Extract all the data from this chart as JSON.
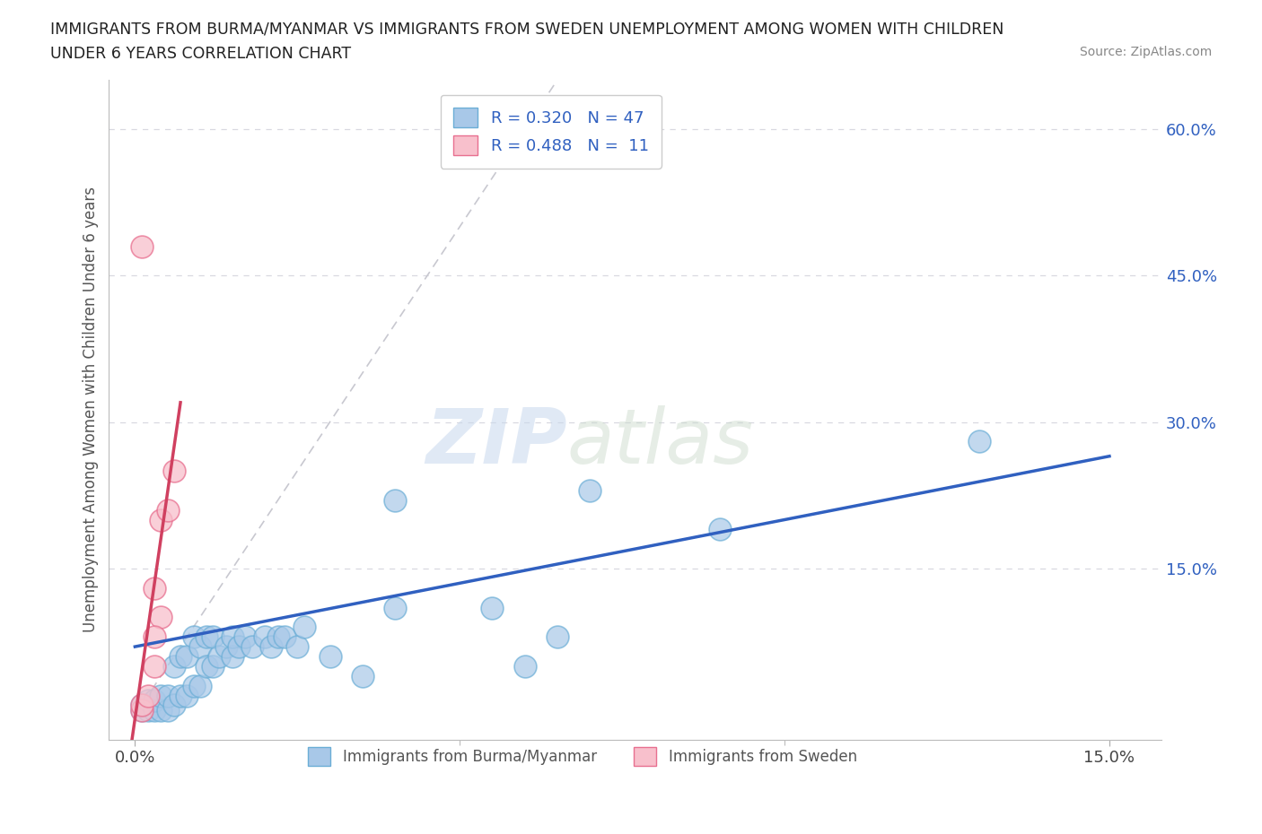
{
  "title_line1": "IMMIGRANTS FROM BURMA/MYANMAR VS IMMIGRANTS FROM SWEDEN UNEMPLOYMENT AMONG WOMEN WITH CHILDREN",
  "title_line2": "UNDER 6 YEARS CORRELATION CHART",
  "source": "Source: ZipAtlas.com",
  "ylabel": "Unemployment Among Women with Children Under 6 years",
  "legend_label1": "Immigrants from Burma/Myanmar",
  "legend_label2": "Immigrants from Sweden",
  "color_blue": "#a8c8e8",
  "color_blue_edge": "#6baed6",
  "color_pink": "#f8c0cc",
  "color_pink_edge": "#e87090",
  "color_trendline_blue": "#3060c0",
  "color_trendline_pink": "#d04060",
  "color_diagonal": "#c8c8d0",
  "watermark_zip": "ZIP",
  "watermark_atlas": "atlas",
  "background_color": "#ffffff",
  "gridline_color": "#d8d8e0",
  "xlim": [
    -0.004,
    0.158
  ],
  "ylim": [
    -0.025,
    0.65
  ],
  "xticks": [
    0.0,
    0.15
  ],
  "yticks": [
    0.15,
    0.3,
    0.45,
    0.6
  ],
  "blue_scatter": [
    [
      0.001,
      0.005
    ],
    [
      0.001,
      0.01
    ],
    [
      0.002,
      0.005
    ],
    [
      0.002,
      0.015
    ],
    [
      0.003,
      0.005
    ],
    [
      0.003,
      0.015
    ],
    [
      0.004,
      0.005
    ],
    [
      0.004,
      0.02
    ],
    [
      0.005,
      0.005
    ],
    [
      0.005,
      0.02
    ],
    [
      0.006,
      0.01
    ],
    [
      0.006,
      0.05
    ],
    [
      0.007,
      0.02
    ],
    [
      0.007,
      0.06
    ],
    [
      0.008,
      0.02
    ],
    [
      0.008,
      0.06
    ],
    [
      0.009,
      0.03
    ],
    [
      0.009,
      0.08
    ],
    [
      0.01,
      0.03
    ],
    [
      0.01,
      0.07
    ],
    [
      0.011,
      0.05
    ],
    [
      0.011,
      0.08
    ],
    [
      0.012,
      0.05
    ],
    [
      0.012,
      0.08
    ],
    [
      0.013,
      0.06
    ],
    [
      0.014,
      0.07
    ],
    [
      0.015,
      0.06
    ],
    [
      0.015,
      0.08
    ],
    [
      0.016,
      0.07
    ],
    [
      0.017,
      0.08
    ],
    [
      0.018,
      0.07
    ],
    [
      0.02,
      0.08
    ],
    [
      0.021,
      0.07
    ],
    [
      0.022,
      0.08
    ],
    [
      0.023,
      0.08
    ],
    [
      0.025,
      0.07
    ],
    [
      0.026,
      0.09
    ],
    [
      0.03,
      0.06
    ],
    [
      0.035,
      0.04
    ],
    [
      0.04,
      0.11
    ],
    [
      0.04,
      0.22
    ],
    [
      0.055,
      0.11
    ],
    [
      0.06,
      0.05
    ],
    [
      0.065,
      0.08
    ],
    [
      0.07,
      0.23
    ],
    [
      0.09,
      0.19
    ],
    [
      0.13,
      0.28
    ]
  ],
  "pink_scatter": [
    [
      0.001,
      0.005
    ],
    [
      0.001,
      0.01
    ],
    [
      0.002,
      0.02
    ],
    [
      0.003,
      0.05
    ],
    [
      0.003,
      0.13
    ],
    [
      0.004,
      0.1
    ],
    [
      0.004,
      0.2
    ],
    [
      0.005,
      0.21
    ],
    [
      0.006,
      0.25
    ],
    [
      0.001,
      0.48
    ],
    [
      0.003,
      0.08
    ]
  ],
  "blue_trendline": [
    [
      0.0,
      0.07
    ],
    [
      0.15,
      0.265
    ]
  ],
  "pink_trendline": [
    [
      -0.001,
      -0.05
    ],
    [
      0.007,
      0.32
    ]
  ],
  "diagonal_line": [
    [
      0.0,
      0.0
    ],
    [
      0.065,
      0.65
    ]
  ]
}
